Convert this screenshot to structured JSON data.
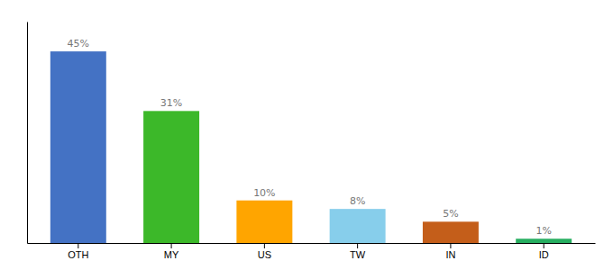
{
  "chart_data": {
    "type": "bar",
    "categories": [
      "OTH",
      "MY",
      "US",
      "TW",
      "IN",
      "ID"
    ],
    "values": [
      45,
      31,
      10,
      8,
      5,
      1
    ],
    "value_labels": [
      "45%",
      "31%",
      "10%",
      "8%",
      "5%",
      "1%"
    ],
    "colors": [
      "#4472C4",
      "#3CB829",
      "#FFA500",
      "#87CEEB",
      "#C45E1A",
      "#27AE60"
    ],
    "ylim": [
      0,
      52
    ],
    "data_labels": true,
    "tick_labels": "x",
    "grid": false
  }
}
